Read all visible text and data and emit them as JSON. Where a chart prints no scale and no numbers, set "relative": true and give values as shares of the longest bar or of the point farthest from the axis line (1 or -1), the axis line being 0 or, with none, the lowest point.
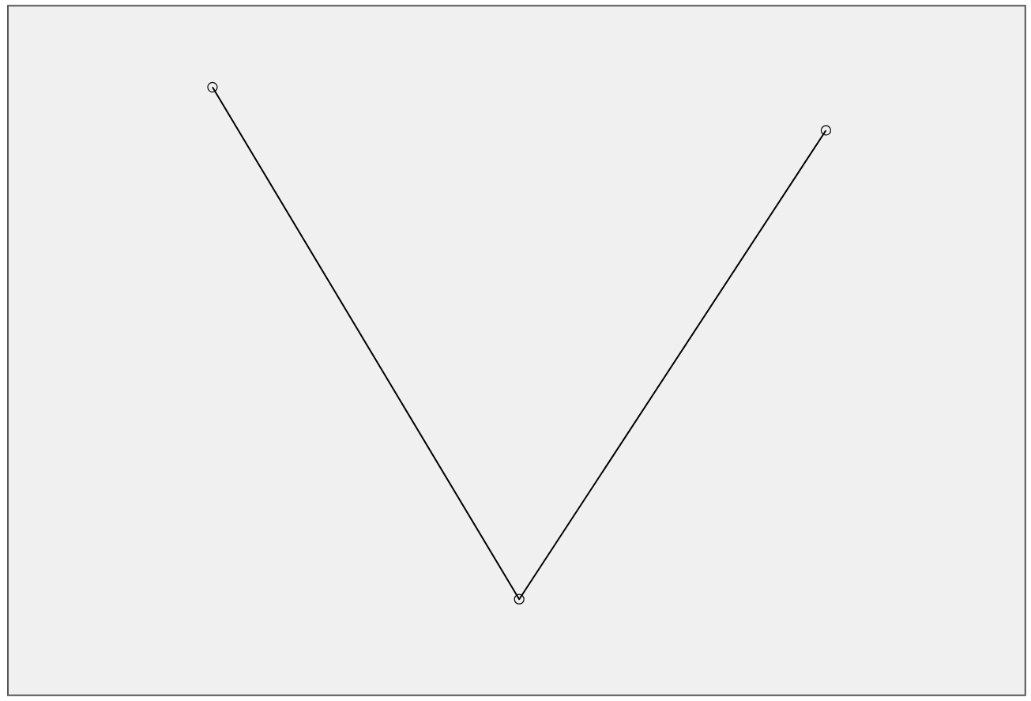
{
  "chart_data": {
    "type": "line",
    "relative": true,
    "categories": [
      null,
      null,
      null
    ],
    "marker": "circle",
    "series": [
      {
        "color": "#000000",
        "values": [
          1,
          0.158,
          0.929
        ]
      }
    ]
  }
}
